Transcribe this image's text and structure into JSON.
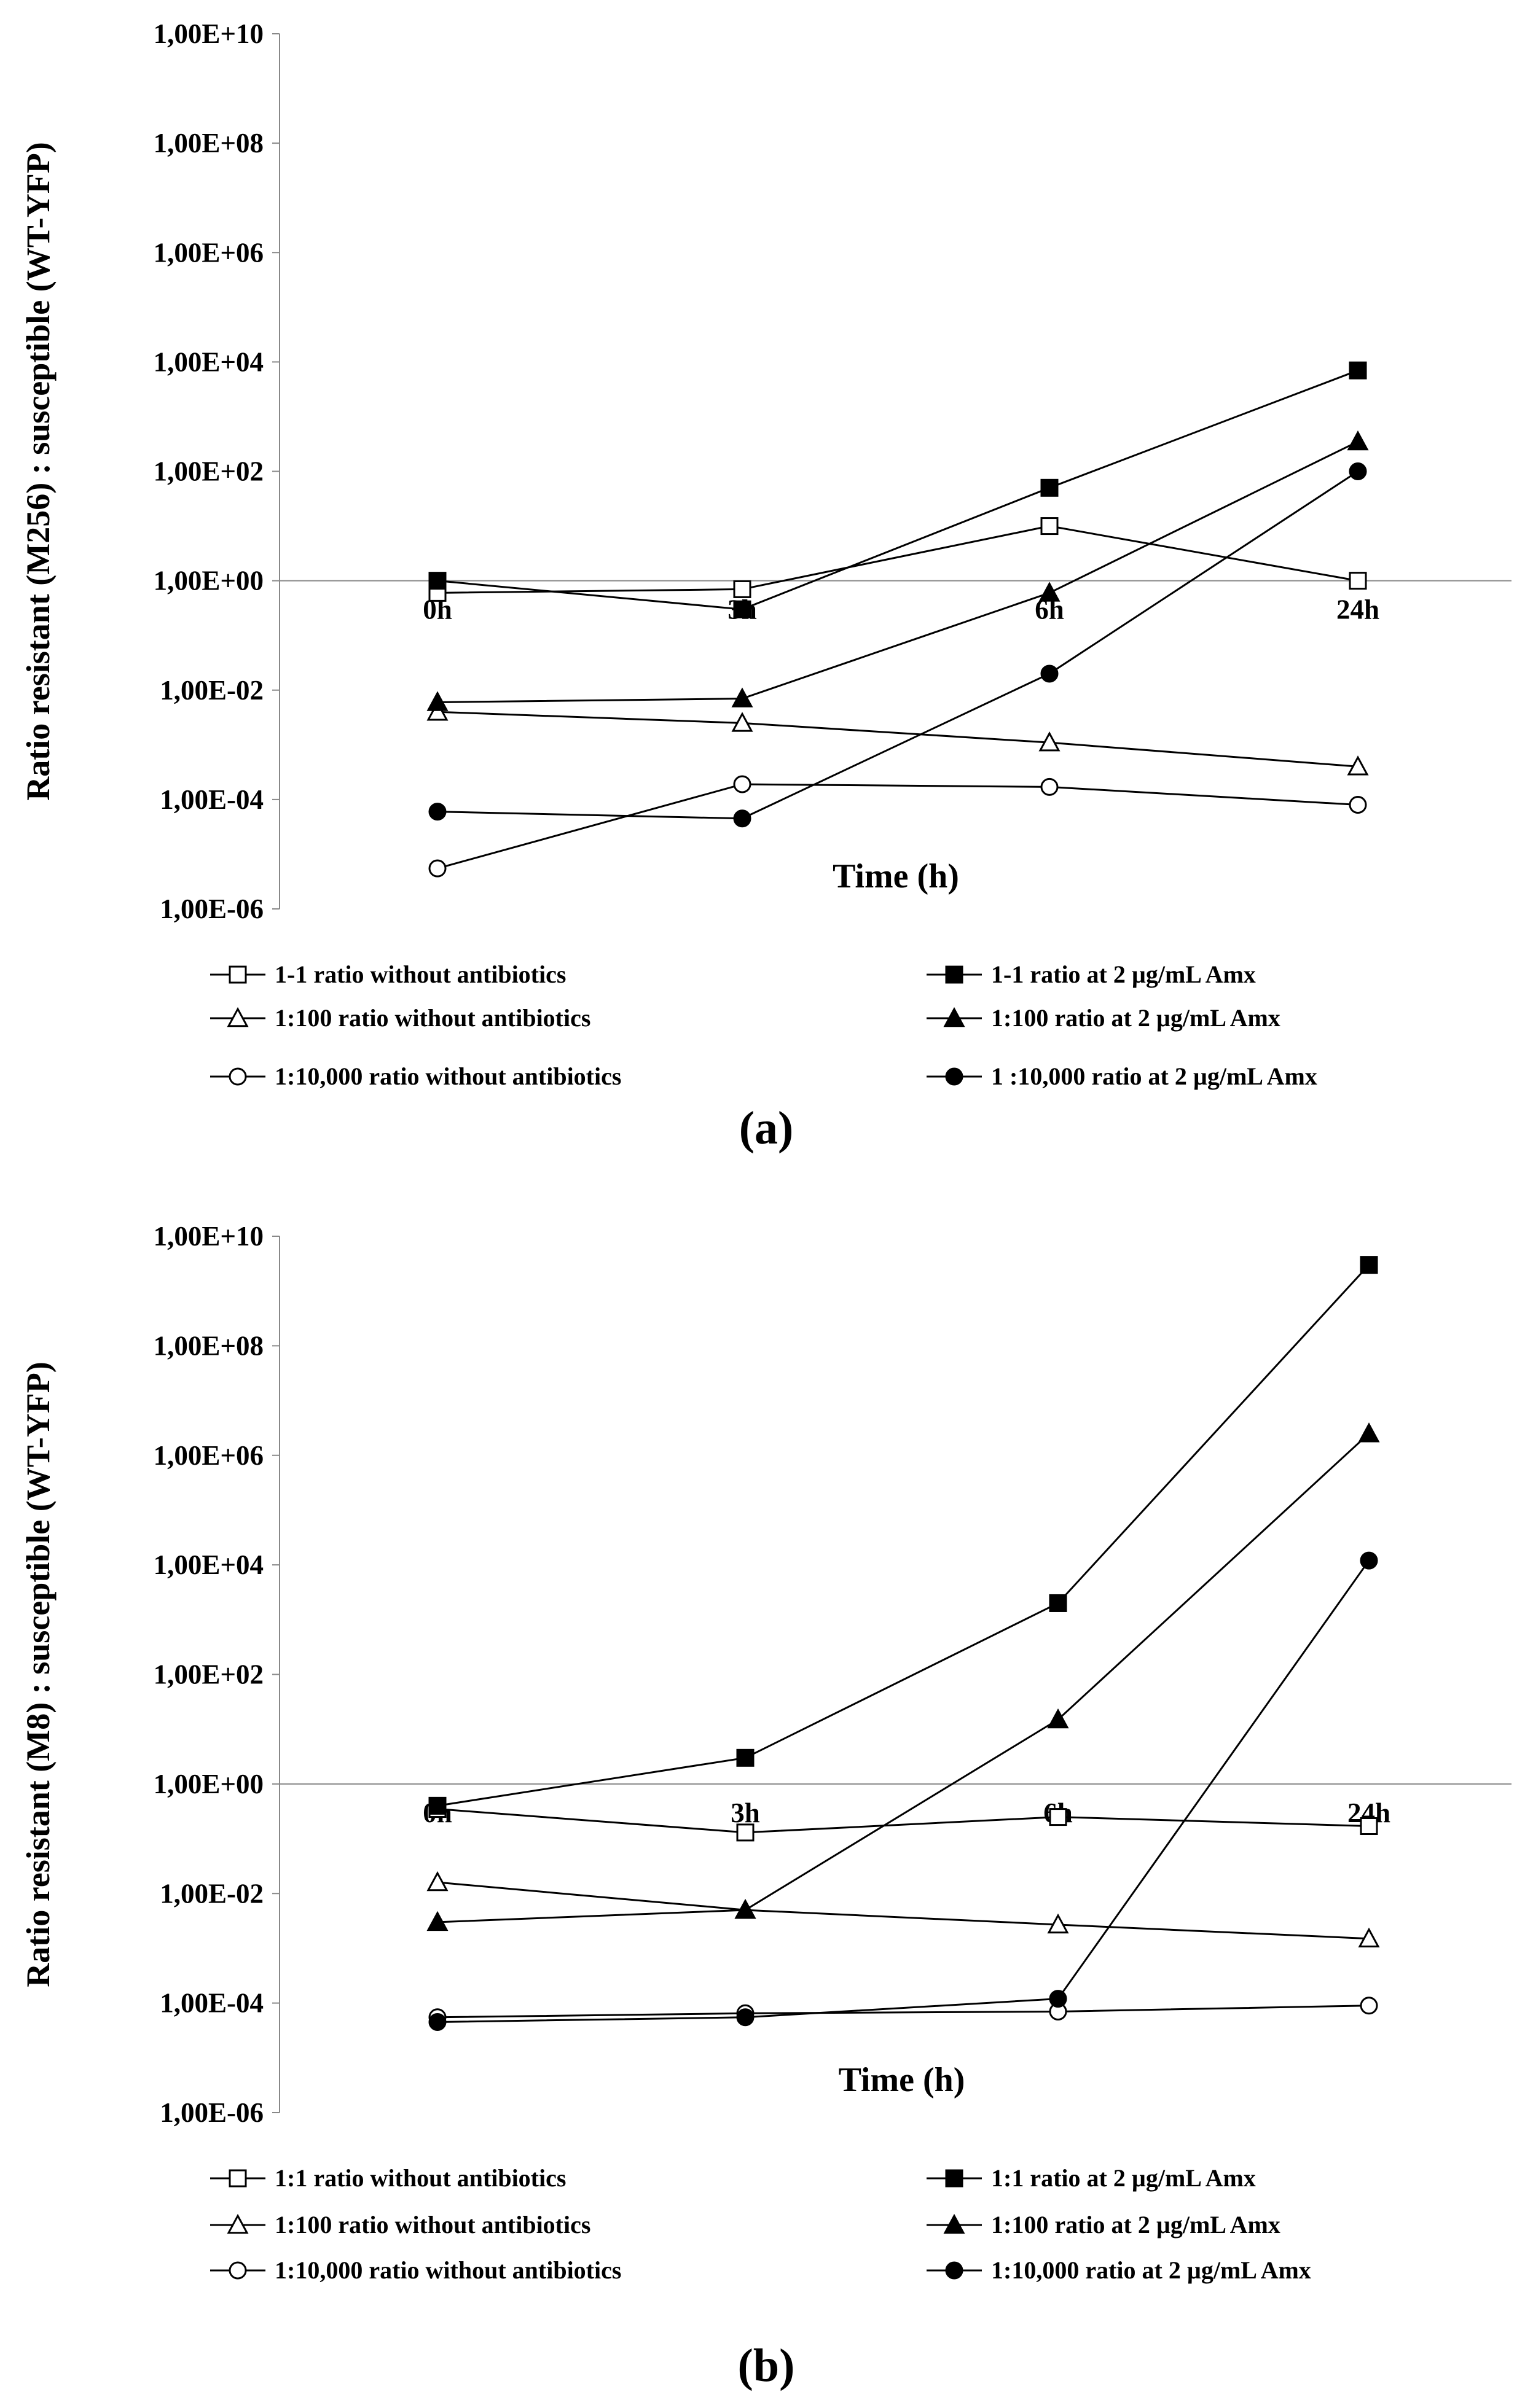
{
  "chart_data": [
    {
      "type": "line",
      "panel_label": "a",
      "y_scale": "log10",
      "ylim": [
        1e-06,
        10000000000.0
      ],
      "y_ticks": [
        "1,00E+10",
        "1,00E+08",
        "1,00E+06",
        "1,00E+04",
        "1,00E+02",
        "1,00E+00",
        "1,00E-02",
        "1,00E-04",
        "1,00E-06"
      ],
      "categories": [
        "0h",
        "3h",
        "6h",
        "24h"
      ],
      "xlabel": "Time (h)",
      "ylabel": "Ratio resistant (M256) : susceptible (WT-YFP)",
      "series": [
        {
          "name": "1-1 ratio without antibiotics",
          "marker": "square-open",
          "values": [
            0.6,
            0.7,
            10,
            1.0
          ]
        },
        {
          "name": "1-1 ratio at 2 µg/mL Amx",
          "marker": "square-filled",
          "values": [
            1.0,
            0.3,
            50,
            7000
          ]
        },
        {
          "name": "1:100 ratio without antibiotics",
          "marker": "triangle-open",
          "values": [
            0.004,
            0.0025,
            0.0011,
            0.0004
          ]
        },
        {
          "name": "1:100 ratio at 2 µg/mL Amx",
          "marker": "triangle-filled",
          "values": [
            0.006,
            0.007,
            0.6,
            350
          ]
        },
        {
          "name": "1:10,000 ratio without antibiotics",
          "marker": "circle-open",
          "values": [
            5.5e-06,
            0.00019,
            0.00017,
            8e-05
          ]
        },
        {
          "name": "1 :10,000 ratio at 2 µg/mL Amx",
          "marker": "circle-filled",
          "values": [
            6e-05,
            4.5e-05,
            0.02,
            100
          ]
        }
      ]
    },
    {
      "type": "line",
      "panel_label": "b",
      "y_scale": "log10",
      "ylim": [
        1e-06,
        10000000000.0
      ],
      "y_ticks": [
        "1,00E+10",
        "1,00E+08",
        "1,00E+06",
        "1,00E+04",
        "1,00E+02",
        "1,00E+00",
        "1,00E-02",
        "1,00E-04",
        "1,00E-06"
      ],
      "categories": [
        "0h",
        "3h",
        "6h",
        "24h"
      ],
      "xlabel": "Time (h)",
      "ylabel": "Ratio resistant (M8) : susceptible (WT-YFP)",
      "series": [
        {
          "name": "1:1 ratio without antibiotics",
          "marker": "square-open",
          "values": [
            0.35,
            0.13,
            0.25,
            0.17
          ]
        },
        {
          "name": "1:1 ratio at 2  µg/mL Amx",
          "marker": "square-filled",
          "values": [
            0.4,
            3,
            2000,
            3000000000.0
          ]
        },
        {
          "name": "1:100 ratio without antibiotics",
          "marker": "triangle-open",
          "values": [
            0.016,
            0.005,
            0.0027,
            0.0015
          ]
        },
        {
          "name": "1:100 ratio at 2  µg/mL Amx",
          "marker": "triangle-filled",
          "values": [
            0.003,
            0.005,
            15,
            2500000.0
          ]
        },
        {
          "name": "1:10,000 ratio without antibiotics",
          "marker": "circle-open",
          "values": [
            5.5e-05,
            6.5e-05,
            7e-05,
            9e-05
          ]
        },
        {
          "name": "1:10,000 ratio at 2  µg/mL Amx",
          "marker": "circle-filled",
          "values": [
            4.5e-05,
            5.5e-05,
            0.00012,
            12000
          ]
        }
      ]
    }
  ]
}
